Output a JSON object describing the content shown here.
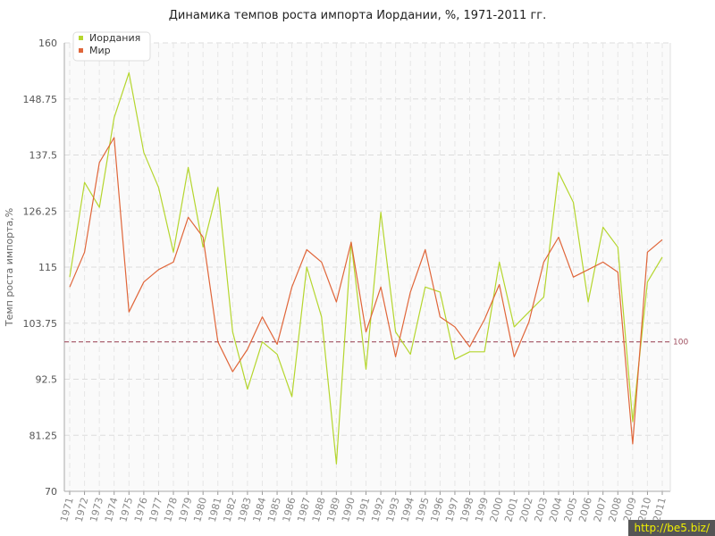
{
  "chart_data": {
    "type": "line",
    "title": "Динамика темпов роста импорта Иордании, %, 1971-2011 гг.",
    "ylabel": "Темп роста импорта,%",
    "xlabel": "",
    "ylim": [
      70,
      160
    ],
    "y_ticks": [
      "160",
      "148.75",
      "137.5",
      "126.25",
      "115",
      "103.75",
      "92.5",
      "81.25",
      "70"
    ],
    "y_tick_values": [
      160,
      148.75,
      137.5,
      126.25,
      115,
      103.75,
      92.5,
      81.25,
      70
    ],
    "categories": [
      "1971",
      "1972",
      "1973",
      "1974",
      "1975",
      "1976",
      "1977",
      "1978",
      "1979",
      "1980",
      "1981",
      "1982",
      "1983",
      "1984",
      "1985",
      "1986",
      "1987",
      "1988",
      "1989",
      "1990",
      "1991",
      "1992",
      "1993",
      "1994",
      "1995",
      "1996",
      "1997",
      "1998",
      "1999",
      "2000",
      "2001",
      "2002",
      "2003",
      "2004",
      "2005",
      "2006",
      "2007",
      "2008",
      "2009",
      "2010",
      "2011"
    ],
    "series": [
      {
        "name": "Иордания",
        "color": "#b5d62e",
        "values": [
          113,
          132,
          127,
          145,
          154,
          138,
          131,
          118,
          135,
          119,
          131,
          102,
          90.5,
          100,
          97.5,
          89,
          115,
          105,
          75.5,
          120,
          94.5,
          126,
          102,
          97.5,
          111,
          110,
          96.5,
          98,
          98,
          116,
          103,
          106,
          109,
          134,
          128,
          108,
          123,
          119,
          84,
          112,
          117
        ]
      },
      {
        "name": "Мир",
        "color": "#e0663a",
        "values": [
          111,
          118,
          136,
          141,
          106,
          112,
          114.5,
          116,
          125,
          121,
          100,
          94,
          98.5,
          105,
          99.5,
          111,
          118.5,
          116,
          108,
          120,
          102,
          111,
          97,
          110,
          118.5,
          105,
          103,
          99,
          104.5,
          111.5,
          97,
          104,
          116,
          121,
          113,
          114.5,
          116,
          114,
          79.5,
          118,
          120.5
        ]
      }
    ],
    "reference_line": {
      "value": 100,
      "label": "100",
      "color": "#a05060"
    },
    "legend_position": "top-left",
    "grid": true
  },
  "watermark": "http://be5.biz/"
}
